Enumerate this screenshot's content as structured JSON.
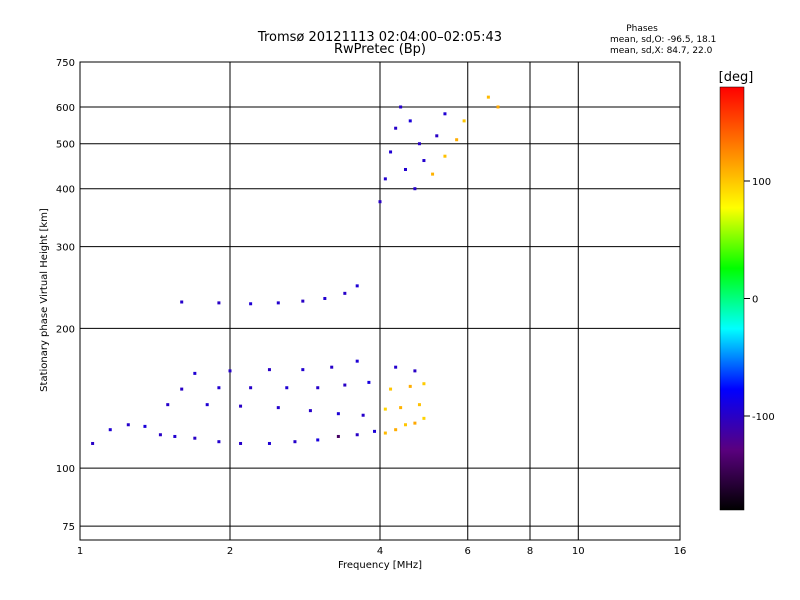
{
  "chart_data": {
    "type": "scatter",
    "title": "Tromsø 20121113 02:04:00–02:05:43",
    "subtitle": "RwPretec (Bp)",
    "xlabel": "Frequency [MHz]",
    "ylabel": "Stationary phase Virtual Height [km]",
    "x_scale": "log",
    "y_scale": "log",
    "xlim": [
      1,
      16
    ],
    "ylim": [
      70,
      750
    ],
    "x_ticks": [
      {
        "value": 1,
        "label": "1"
      },
      {
        "value": 2,
        "label": "2"
      },
      {
        "value": 4,
        "label": "4"
      },
      {
        "value": 6,
        "label": "6"
      },
      {
        "value": 8,
        "label": "8"
      },
      {
        "value": 10,
        "label": "10"
      },
      {
        "value": 16,
        "label": "16"
      }
    ],
    "y_ticks": [
      {
        "value": 75,
        "label": "75"
      },
      {
        "value": 100,
        "label": "100"
      },
      {
        "value": 200,
        "label": "200"
      },
      {
        "value": 300,
        "label": "300"
      },
      {
        "value": 400,
        "label": "400"
      },
      {
        "value": 500,
        "label": "500"
      },
      {
        "value": 600,
        "label": "600"
      },
      {
        "value": 750,
        "label": "750"
      }
    ],
    "grid": true,
    "stats": {
      "heading": "Phases",
      "line_o": "mean, sd,O: -96.5, 18.1",
      "line_x": "mean, sd,X:  84.7, 22.0"
    },
    "colorbar": {
      "label": "[deg]",
      "range": [
        -180,
        180
      ],
      "ticks": [
        {
          "value": 100,
          "label": "100"
        },
        {
          "value": 0,
          "label": "0"
        },
        {
          "value": -100,
          "label": "-100"
        }
      ],
      "colormap": "rainbow",
      "colors": [
        "#000000",
        "#5a007f",
        "#0000ff",
        "#00ffff",
        "#00ff00",
        "#ffff00",
        "#ff7f00",
        "#ff0000"
      ]
    },
    "points": [
      [
        1.06,
        113,
        -100
      ],
      [
        1.15,
        121,
        -95
      ],
      [
        1.25,
        124,
        -98
      ],
      [
        1.35,
        123,
        -92
      ],
      [
        1.45,
        118,
        -100
      ],
      [
        1.55,
        117,
        -96
      ],
      [
        1.7,
        116,
        -100
      ],
      [
        1.9,
        114,
        -97
      ],
      [
        2.1,
        113,
        -99
      ],
      [
        2.4,
        113,
        -95
      ],
      [
        2.7,
        114,
        -98
      ],
      [
        3.0,
        115,
        -90
      ],
      [
        3.3,
        117,
        -140
      ],
      [
        3.6,
        118,
        -100
      ],
      [
        3.9,
        120,
        -93
      ],
      [
        4.1,
        119,
        105
      ],
      [
        4.3,
        121,
        110
      ],
      [
        4.5,
        124,
        100
      ],
      [
        4.7,
        125,
        112
      ],
      [
        4.9,
        128,
        95
      ],
      [
        1.5,
        137,
        -98
      ],
      [
        1.8,
        137,
        -95
      ],
      [
        2.1,
        136,
        -100
      ],
      [
        2.5,
        135,
        -97
      ],
      [
        2.9,
        133,
        -99
      ],
      [
        3.3,
        131,
        -94
      ],
      [
        3.7,
        130,
        -98
      ],
      [
        4.1,
        134,
        95
      ],
      [
        4.4,
        135,
        108
      ],
      [
        4.8,
        137,
        102
      ],
      [
        1.6,
        148,
        -100
      ],
      [
        1.9,
        149,
        -96
      ],
      [
        2.2,
        149,
        -99
      ],
      [
        2.6,
        149,
        -95
      ],
      [
        3.0,
        149,
        -98
      ],
      [
        3.4,
        151,
        -100
      ],
      [
        3.8,
        153,
        -90
      ],
      [
        4.2,
        148,
        100
      ],
      [
        4.6,
        150,
        110
      ],
      [
        4.9,
        152,
        98
      ],
      [
        1.7,
        160,
        -95
      ],
      [
        2.0,
        162,
        -98
      ],
      [
        2.4,
        163,
        -100
      ],
      [
        2.8,
        163,
        -96
      ],
      [
        3.2,
        165,
        -99
      ],
      [
        3.6,
        170,
        -94
      ],
      [
        4.3,
        165,
        -97
      ],
      [
        4.7,
        162,
        -100
      ],
      [
        1.6,
        228,
        -98
      ],
      [
        1.9,
        227,
        -100
      ],
      [
        2.2,
        226,
        -95
      ],
      [
        2.5,
        227,
        -97
      ],
      [
        2.8,
        229,
        -100
      ],
      [
        3.1,
        232,
        -96
      ],
      [
        3.4,
        238,
        -99
      ],
      [
        3.6,
        247,
        -94
      ],
      [
        4.0,
        375,
        -100
      ],
      [
        4.1,
        420,
        -97
      ],
      [
        4.2,
        480,
        -95
      ],
      [
        4.3,
        540,
        -99
      ],
      [
        4.4,
        600,
        -98
      ],
      [
        4.6,
        560,
        -92
      ],
      [
        4.8,
        500,
        -100
      ],
      [
        4.5,
        440,
        -96
      ],
      [
        4.7,
        400,
        -98
      ],
      [
        4.9,
        460,
        -97
      ],
      [
        5.2,
        520,
        -100
      ],
      [
        5.4,
        580,
        -95
      ],
      [
        5.1,
        430,
        108
      ],
      [
        5.4,
        470,
        102
      ],
      [
        5.7,
        510,
        110
      ],
      [
        5.9,
        560,
        100
      ],
      [
        6.6,
        630,
        105
      ],
      [
        6.9,
        600,
        112
      ]
    ]
  }
}
